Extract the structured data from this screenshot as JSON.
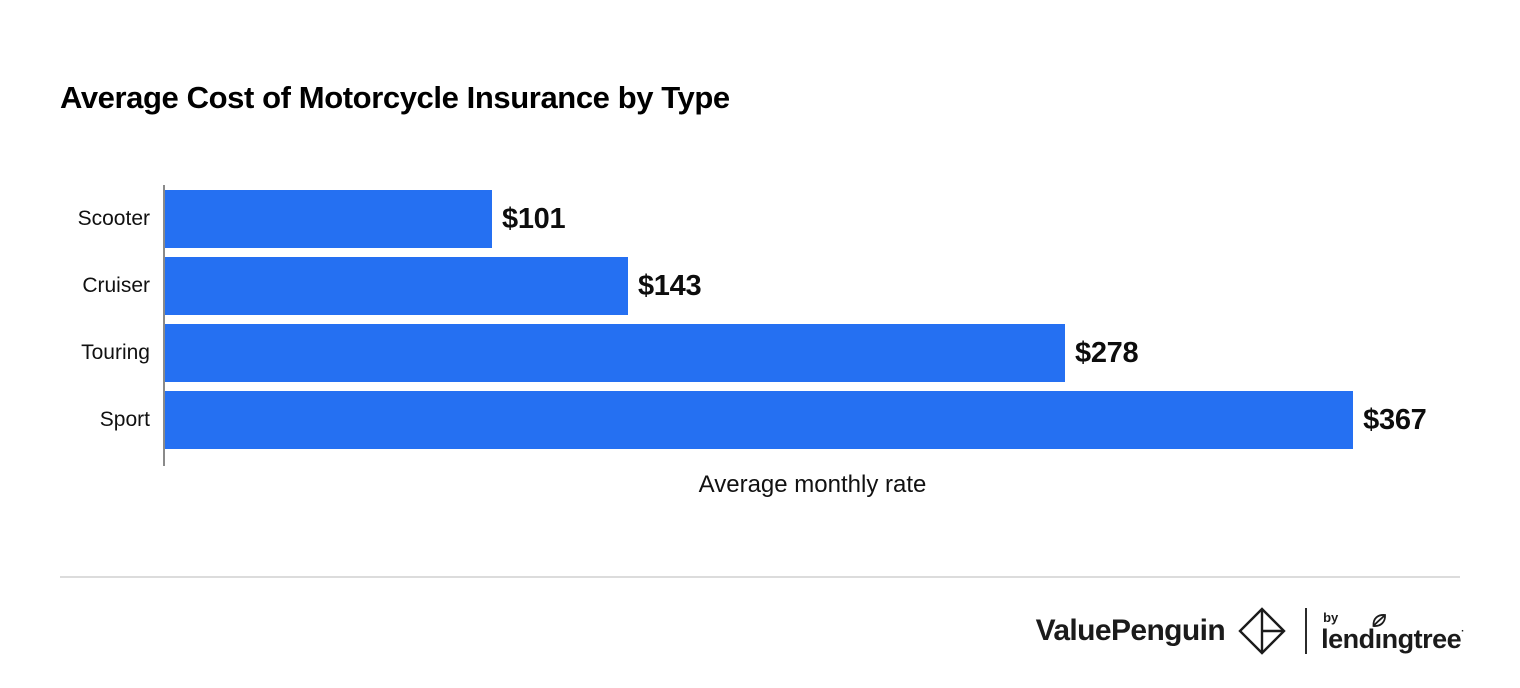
{
  "chart_data": {
    "type": "bar",
    "orientation": "horizontal",
    "title": "Average Cost of Motorcycle Insurance by Type",
    "categories": [
      "Scooter",
      "Cruiser",
      "Touring",
      "Sport"
    ],
    "values": [
      101,
      143,
      278,
      367
    ],
    "value_labels": [
      "$101",
      "$143",
      "$278",
      "$367"
    ],
    "xlabel": "Average monthly rate",
    "ylabel": "",
    "xlim": [
      0,
      400
    ],
    "grid": false,
    "legend": false,
    "bar_color": "#2570F2",
    "axis_color": "#8A8A8A"
  },
  "footer": {
    "valuepenguin_wordmark": "ValuePenguin",
    "by_label": "by",
    "lendingtree_part1": "lend",
    "lendingtree_i": "ı",
    "lendingtree_part2": "ngtree",
    "trademark_dot": "·",
    "penguin_icon": "valuepenguin-origami-penguin-icon",
    "leaf_icon": "lendingtree-leaf-icon"
  },
  "colors": {
    "accent_blue": "#2570F2",
    "axis_gray": "#8A8A8A",
    "divider_gray": "#DCDCDC",
    "text_black": "#111111"
  }
}
